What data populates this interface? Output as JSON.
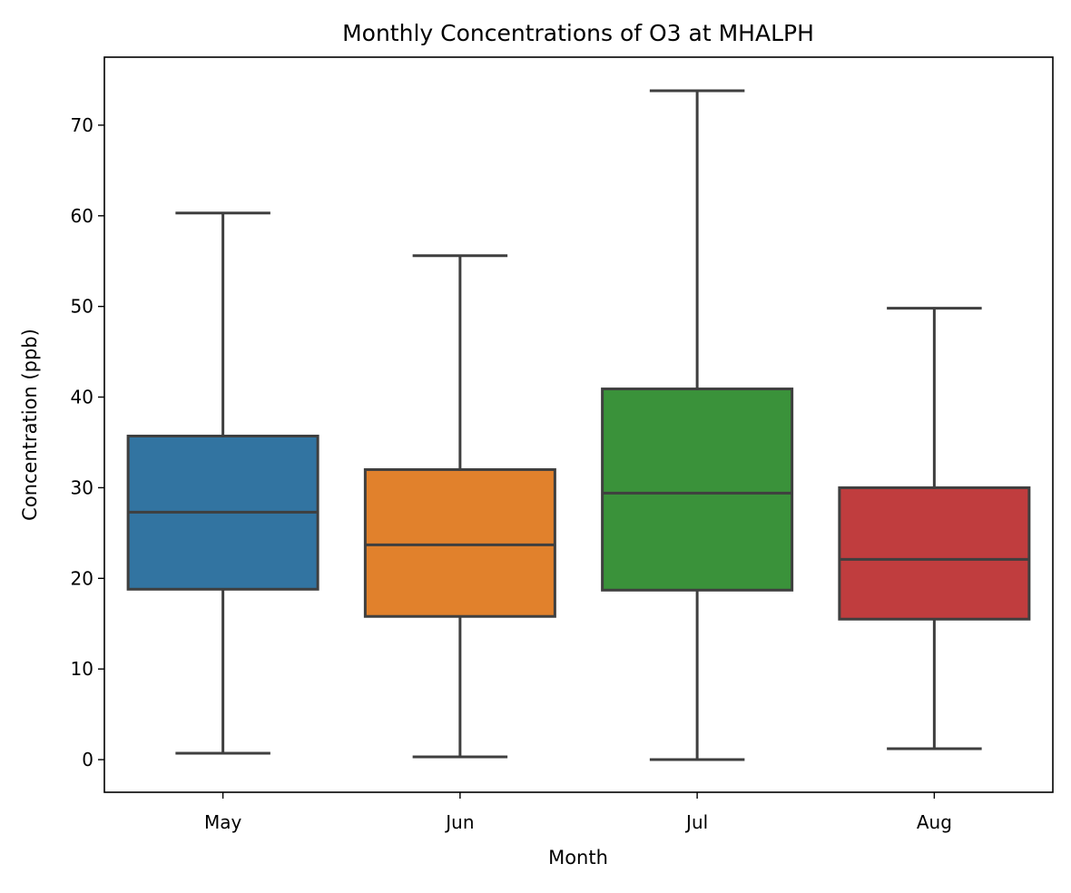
{
  "chart_data": {
    "type": "boxplot",
    "title": "Monthly Concentrations of O3 at MHALPH",
    "xlabel": "Month",
    "ylabel": "Concentration (ppb)",
    "categories": [
      "May",
      "Jun",
      "Jul",
      "Aug"
    ],
    "boxes": [
      {
        "category": "May",
        "whisker_low": 0.7,
        "q1": 18.8,
        "median": 27.3,
        "q3": 35.7,
        "whisker_high": 60.3,
        "color": "#3274a1"
      },
      {
        "category": "Jun",
        "whisker_low": 0.3,
        "q1": 15.8,
        "median": 23.7,
        "q3": 32.0,
        "whisker_high": 55.6,
        "color": "#e1812c"
      },
      {
        "category": "Jul",
        "whisker_low": 0.0,
        "q1": 18.7,
        "median": 29.4,
        "q3": 40.9,
        "whisker_high": 73.8,
        "color": "#3a923a"
      },
      {
        "category": "Aug",
        "whisker_low": 1.2,
        "q1": 15.5,
        "median": 22.1,
        "q3": 30.0,
        "whisker_high": 49.8,
        "color": "#c03d3e"
      }
    ],
    "ylim": [
      -3.6,
      77.5
    ],
    "yticks": [
      0,
      10,
      20,
      30,
      40,
      50,
      60,
      70
    ],
    "grid": false,
    "legend": "none",
    "line_color": "#3f3f3f"
  }
}
